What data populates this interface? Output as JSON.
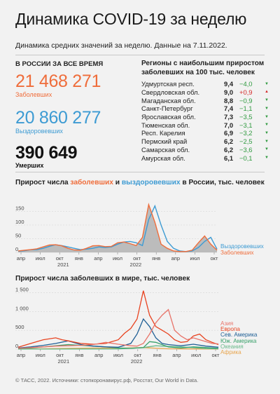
{
  "header": {
    "title": "Динамика COVID-19 за неделю",
    "subtitle": "Динамика средних значений за неделю. Данные на 7.11.2022."
  },
  "russia_totals": {
    "heading": "В России за все время",
    "infected_value": "21 468 271",
    "infected_label": "Заболевших",
    "recovered_value": "20 860 277",
    "recovered_label": "Выздоровевших",
    "deaths_value": "390 649",
    "deaths_label": "Умерших"
  },
  "regions": {
    "title": "Регионы с наибольшим приростом заболевших на 100 тыс. человек",
    "rows": [
      {
        "name": "Удмуртская респ.",
        "value": "9,4",
        "delta": "−4,0",
        "dir": "down"
      },
      {
        "name": "Свердловская обл.",
        "value": "9,0",
        "delta": "+0,9",
        "dir": "up"
      },
      {
        "name": "Магаданская обл.",
        "value": "8,8",
        "delta": "−0,9",
        "dir": "down"
      },
      {
        "name": "Санкт-Петербург",
        "value": "7,4",
        "delta": "−1,1",
        "dir": "down"
      },
      {
        "name": "Ярославская обл.",
        "value": "7,3",
        "delta": "−3,5",
        "dir": "down"
      },
      {
        "name": "Тюменская обл.",
        "value": "7,0",
        "delta": "−3,1",
        "dir": "down"
      },
      {
        "name": "Респ. Карелия",
        "value": "6,9",
        "delta": "−3,2",
        "dir": "down"
      },
      {
        "name": "Пермский край",
        "value": "6,2",
        "delta": "−2,5",
        "dir": "down"
      },
      {
        "name": "Самарская обл.",
        "value": "6,2",
        "delta": "−3,6",
        "dir": "down"
      },
      {
        "name": "Амурская обл.",
        "value": "6,1",
        "delta": "−0,1",
        "dir": "down"
      }
    ]
  },
  "colors": {
    "infected": "#ef6d3b",
    "recovered": "#3d9bd3",
    "up": "#d42a2a",
    "down": "#2f9a3f",
    "area": "#a9a9a9"
  },
  "chart_data": [
    {
      "type": "area",
      "title_parts": [
        "Прирост числа ",
        "заболевших",
        " и ",
        "выздоровевших",
        " в России, тыс. человек"
      ],
      "x_ticks": [
        "апр",
        "июл",
        "окт",
        "янв",
        "апр",
        "июл",
        "окт",
        "янв",
        "апр",
        "июл",
        "окт"
      ],
      "year_labels": [
        {
          "label": "2021",
          "at": 7
        },
        {
          "label": "2022",
          "at": 19
        }
      ],
      "ylim": [
        0,
        200
      ],
      "yticks": [
        0,
        50,
        100,
        150
      ],
      "x_range": [
        0,
        32
      ],
      "series": [
        {
          "name": "Выздоровевших",
          "color": "#3d9bd3",
          "x": [
            0,
            1,
            2,
            3,
            4,
            5,
            6,
            7,
            8,
            9,
            10,
            11,
            12,
            13,
            14,
            15,
            16,
            17,
            18,
            19,
            20,
            21,
            22,
            23,
            24,
            25,
            26,
            27,
            28,
            29,
            30,
            31,
            32
          ],
          "y": [
            4,
            6,
            10,
            10,
            15,
            22,
            28,
            25,
            20,
            15,
            10,
            12,
            15,
            20,
            18,
            20,
            30,
            38,
            40,
            35,
            25,
            120,
            170,
            100,
            40,
            15,
            5,
            3,
            5,
            18,
            40,
            55,
            12
          ]
        },
        {
          "name": "Заболевших",
          "color": "#ef6d3b",
          "x": [
            0,
            1,
            2,
            3,
            4,
            5,
            6,
            7,
            8,
            9,
            10,
            11,
            12,
            13,
            14,
            15,
            16,
            17,
            18,
            19,
            20,
            21,
            22,
            23,
            24,
            25,
            26,
            27,
            28,
            29,
            30,
            31,
            32
          ],
          "y": [
            5,
            8,
            10,
            13,
            20,
            27,
            28,
            24,
            15,
            9,
            8,
            15,
            24,
            25,
            21,
            22,
            35,
            38,
            32,
            25,
            55,
            175,
            110,
            30,
            15,
            5,
            3,
            3,
            8,
            35,
            60,
            30,
            8
          ]
        }
      ]
    },
    {
      "type": "line",
      "title": "Прирост числа заболевших в мире, тыс. человек",
      "x_ticks": [
        "апр",
        "июл",
        "окт",
        "янв",
        "апр",
        "июл",
        "окт",
        "янв",
        "апр",
        "июл",
        "окт"
      ],
      "year_labels": [
        {
          "label": "2021",
          "at": 7
        },
        {
          "label": "2022",
          "at": 19
        }
      ],
      "ylim": [
        0,
        1600
      ],
      "yticks": [
        0,
        500,
        1000,
        1500
      ],
      "ytick_labels": [
        "0",
        "500",
        "1 000",
        "1 500"
      ],
      "x_range": [
        0,
        32
      ],
      "series": [
        {
          "name": "Азия",
          "color": "#e8746a",
          "x": [
            0,
            2,
            4,
            6,
            8,
            10,
            12,
            14,
            16,
            18,
            19,
            20,
            21,
            22,
            23,
            24,
            25,
            26,
            27,
            28,
            29,
            30,
            31,
            32
          ],
          "y": [
            20,
            40,
            60,
            80,
            90,
            100,
            120,
            180,
            130,
            90,
            80,
            150,
            400,
            700,
            900,
            1050,
            500,
            350,
            250,
            300,
            250,
            200,
            150,
            140
          ]
        },
        {
          "name": "Европа",
          "color": "#e84320",
          "x": [
            0,
            2,
            4,
            6,
            7,
            8,
            10,
            12,
            14,
            16,
            17,
            18,
            19,
            20,
            21,
            22,
            23,
            24,
            25,
            26,
            27,
            28,
            29,
            30,
            31,
            32
          ],
          "y": [
            50,
            150,
            250,
            300,
            250,
            220,
            150,
            130,
            150,
            250,
            420,
            550,
            800,
            1550,
            900,
            600,
            500,
            400,
            250,
            180,
            200,
            350,
            400,
            250,
            180,
            120
          ]
        },
        {
          "name": "Сев. Америка",
          "color": "#1f5f95",
          "x": [
            0,
            2,
            4,
            6,
            8,
            10,
            12,
            14,
            16,
            18,
            19,
            20,
            21,
            22,
            23,
            24,
            26,
            28,
            30,
            32
          ],
          "y": [
            30,
            60,
            100,
            150,
            220,
            120,
            80,
            60,
            50,
            150,
            400,
            800,
            600,
            300,
            150,
            120,
            90,
            130,
            80,
            50
          ]
        },
        {
          "name": "Юж. Америка",
          "color": "#38a06a",
          "x": [
            0,
            2,
            4,
            6,
            8,
            10,
            12,
            14,
            16,
            18,
            20,
            21,
            22,
            24,
            26,
            28,
            30,
            32
          ],
          "y": [
            10,
            30,
            60,
            90,
            120,
            100,
            80,
            60,
            30,
            20,
            40,
            200,
            180,
            60,
            30,
            60,
            40,
            20
          ]
        },
        {
          "name": "Океания",
          "color": "#68b98a",
          "x": [
            0,
            4,
            8,
            12,
            16,
            20,
            22,
            24,
            26,
            28,
            30,
            32
          ],
          "y": [
            2,
            2,
            3,
            3,
            5,
            40,
            90,
            70,
            60,
            40,
            15,
            8
          ]
        },
        {
          "name": "Африка",
          "color": "#e8a650",
          "x": [
            0,
            4,
            8,
            12,
            16,
            20,
            24,
            28,
            32
          ],
          "y": [
            3,
            10,
            20,
            30,
            25,
            40,
            10,
            5,
            3
          ]
        }
      ]
    }
  ],
  "footer": "© ТАСС, 2022. Источники: стопкоронавирус.рф, Росстат, Our World in Data."
}
